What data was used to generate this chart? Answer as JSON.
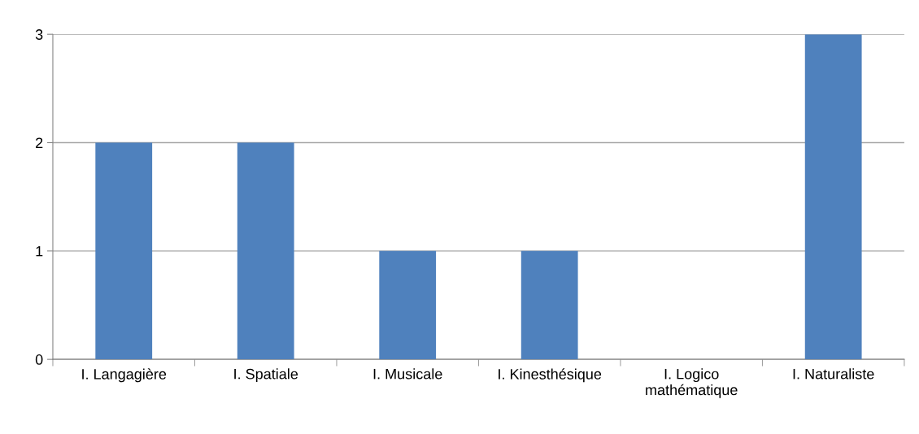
{
  "chart_data": {
    "type": "bar",
    "categories": [
      "I. Langagière",
      "I. Spatiale",
      "I. Musicale",
      "I. Kinesthésique",
      "I. Logico mathématique",
      "I. Naturaliste"
    ],
    "values": [
      2,
      2,
      1,
      1,
      0,
      3
    ],
    "color": "#4f81bd",
    "ylim": [
      0,
      3
    ],
    "yticks": [
      0,
      1,
      2,
      3
    ],
    "grid": "y",
    "legend": false
  }
}
